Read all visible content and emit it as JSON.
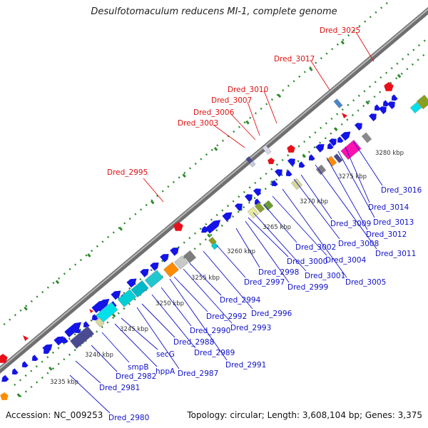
{
  "title": "Desulfotomaculum reducens MI-1, complete genome",
  "accession_label": "Accession: NC_009253",
  "footer_info": "Topology: circular; Length: 3,608,104 bp; Genes: 3,375",
  "colors": {
    "backbone": "#8c8c8c",
    "cds": "#1414e6",
    "rna": "#e8101a",
    "tick": "#2e8b2e",
    "label_red": "#e01010",
    "label_blue": "#1010c8"
  },
  "scale_labels": [
    {
      "text": "3235 kbp"
    },
    {
      "text": "3240 kbp"
    },
    {
      "text": "3245 kbp"
    },
    {
      "text": "3250 kbp"
    },
    {
      "text": "3255 kbp"
    },
    {
      "text": "3260 kbp"
    },
    {
      "text": "3265 kbp"
    },
    {
      "text": "3270 kbp"
    },
    {
      "text": "3275 kbp"
    },
    {
      "text": "3280 kbp"
    }
  ],
  "outer_labels": [
    "Dred_2995",
    "Dred_3003",
    "Dred_3006",
    "Dred_3007",
    "Dred_3010",
    "Dred_3017",
    "Dred_3025"
  ],
  "inner_labels": [
    "Dred_2980",
    "Dred_2981",
    "Dred_2982",
    "smpB",
    "hppA",
    "secG",
    "Dred_2987",
    "Dred_2988",
    "Dred_2989",
    "Dred_2990",
    "Dred_2991",
    "Dred_2992",
    "Dred_2993",
    "Dred_2994",
    "Dred_2996",
    "Dred_2997",
    "Dred_2998",
    "Dred_2999",
    "Dred_3000",
    "Dred_3001",
    "Dred_3002",
    "Dred_3004",
    "Dred_3005",
    "Dred_3008",
    "Dred_3009",
    "Dred_3011",
    "Dred_3012",
    "Dred_3013",
    "Dred_3014",
    "Dred_3016"
  ]
}
